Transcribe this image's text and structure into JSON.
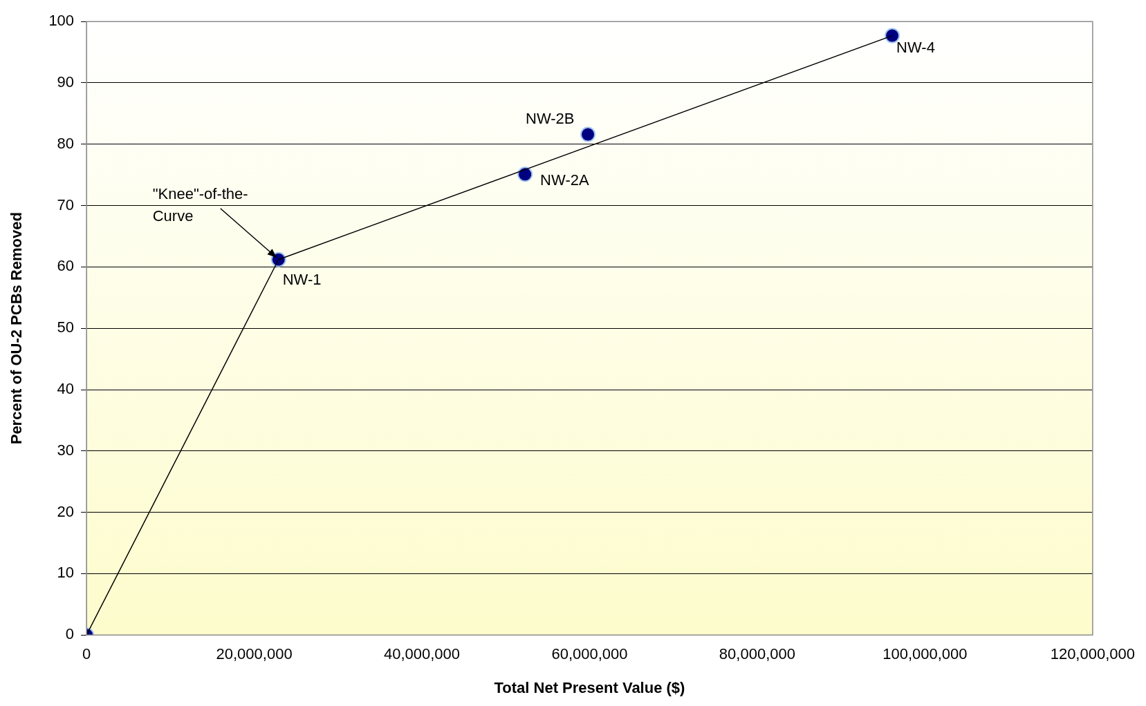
{
  "chart_data": {
    "type": "scatter",
    "xlabel": "Total Net Present Value ($)",
    "ylabel": "Percent of OU-2 PCBs Removed",
    "xlim": [
      0,
      120000000
    ],
    "xticks": [
      0,
      {
        "value": 20000000,
        "label": "20,000,000"
      },
      {
        "value": 40000000,
        "label": "40,000,000"
      },
      {
        "value": 60000000,
        "label": "60,000,000"
      },
      {
        "value": 80000000,
        "label": "80,000,000"
      },
      {
        "value": 100000000,
        "label": "100,000,000"
      },
      {
        "value": 120000000,
        "label": "120,000,000"
      }
    ],
    "ylim": [
      0,
      100
    ],
    "yticks": [
      0,
      10,
      20,
      30,
      40,
      50,
      60,
      70,
      80,
      90,
      100
    ],
    "grid": "y",
    "legend": false,
    "series": [
      {
        "type": "line",
        "color": "#000000",
        "x": [
          0,
          22900000,
          96100000
        ],
        "values": [
          0,
          61.2,
          97.7
        ],
        "marker": "none"
      },
      {
        "type": "scatter",
        "color": "#000080",
        "x": [
          0,
          22900000,
          52300000,
          59800000,
          96100000
        ],
        "values": [
          0,
          61.2,
          75.1,
          81.6,
          97.7
        ],
        "marker": "circle"
      }
    ],
    "annotations": [
      {
        "text": "NW-1",
        "x": 22900000,
        "y": 61.2
      },
      {
        "text": "NW-2A",
        "x": 52300000,
        "y": 75.1
      },
      {
        "text": "NW-2B",
        "x": 59800000,
        "y": 81.6
      },
      {
        "text": "NW-4",
        "x": 96100000,
        "y": 97.7
      },
      {
        "text": "\"Knee\"-of-the-Curve",
        "x": 22900000,
        "y": 61.2
      }
    ]
  }
}
